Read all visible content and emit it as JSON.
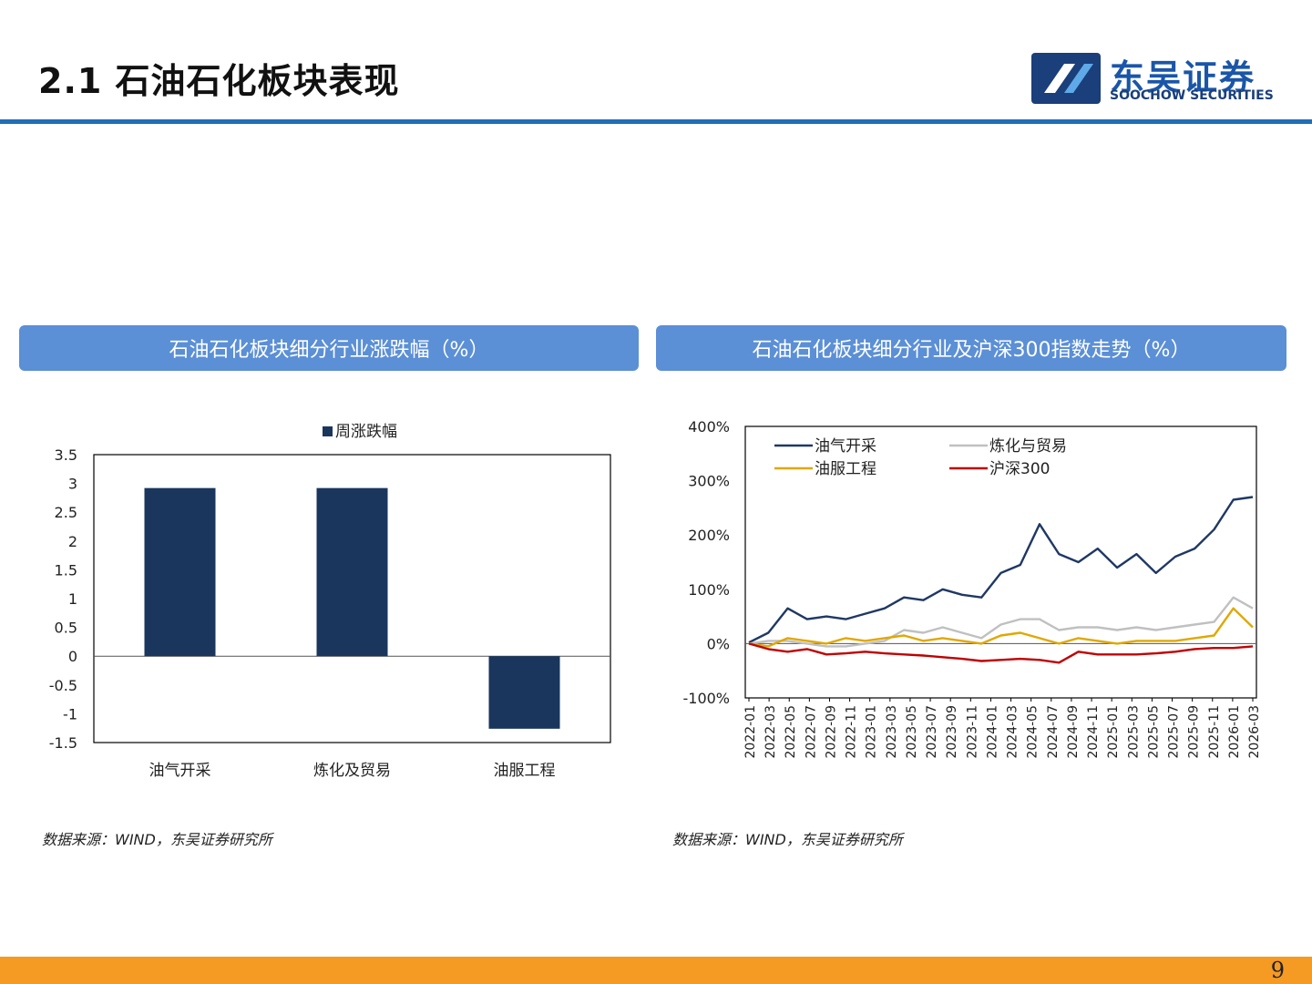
{
  "header": {
    "title": "2.1 石油石化板块表现",
    "logo_cn": "东吴证券",
    "logo_en": "SOOCHOW SECURITIES"
  },
  "panels": [
    {
      "title": "石油石化板块细分行业涨跌幅（%）",
      "source": "数据来源：WIND，东吴证券研究所"
    },
    {
      "title": "石油石化板块细分行业及沪深300指数走势（%）",
      "source": "数据来源：WIND，东吴证券研究所"
    }
  ],
  "page_number": "9",
  "colors": {
    "accent": "#1f6fb5",
    "panel": "#5b8fd6",
    "footer": "#f59a23",
    "bar": "#1a365d"
  },
  "chart_data": [
    {
      "type": "bar",
      "legend": "周涨跌幅",
      "categories": [
        "油气开采",
        "炼化及贸易",
        "油服工程"
      ],
      "values": [
        2.92,
        2.92,
        -1.26
      ],
      "ylim": [
        -1.5,
        3.5
      ],
      "yticks": [
        "3.5",
        "3",
        "2.5",
        "2",
        "1.5",
        "1",
        "0.5",
        "0",
        "-0.5",
        "-1",
        "-1.5"
      ],
      "legend_position": "top"
    },
    {
      "type": "line",
      "ylim": [
        -100,
        400
      ],
      "yticks": [
        "400%",
        "300%",
        "200%",
        "100%",
        "0%",
        "-100%"
      ],
      "xticks": [
        "2022-01",
        "2022-03",
        "2022-05",
        "2022-07",
        "2022-09",
        "2022-11",
        "2023-01",
        "2023-03",
        "2023-05",
        "2023-07",
        "2023-09",
        "2023-11",
        "2024-01",
        "2024-03",
        "2024-05",
        "2024-07",
        "2024-09",
        "2024-11",
        "2025-01",
        "2025-03",
        "2025-05",
        "2025-07",
        "2025-09",
        "2025-11",
        "2026-01",
        "2026-03"
      ],
      "legend_position": "top-left",
      "series": [
        {
          "name": "油气开采",
          "color": "#1f3864",
          "x": [
            0,
            1,
            2,
            3,
            4,
            5,
            6,
            7,
            8,
            9,
            10,
            11,
            12,
            13,
            14,
            15,
            16,
            17,
            18,
            19,
            20,
            21,
            22,
            23,
            24,
            25,
            26
          ],
          "y": [
            2,
            20,
            65,
            45,
            50,
            45,
            55,
            65,
            85,
            80,
            100,
            90,
            85,
            130,
            145,
            220,
            165,
            150,
            175,
            140,
            165,
            130,
            160,
            175,
            210,
            265,
            270
          ]
        },
        {
          "name": "炼化与贸易",
          "color": "#c0c0c0",
          "x": [
            0,
            1,
            2,
            3,
            4,
            5,
            6,
            7,
            8,
            9,
            10,
            11,
            12,
            13,
            14,
            15,
            16,
            17,
            18,
            19,
            20,
            21,
            22,
            23,
            24,
            25,
            26
          ],
          "y": [
            0,
            5,
            5,
            0,
            -5,
            -5,
            0,
            5,
            25,
            20,
            30,
            20,
            10,
            35,
            45,
            45,
            25,
            30,
            30,
            25,
            30,
            25,
            30,
            35,
            40,
            85,
            65
          ]
        },
        {
          "name": "油服工程",
          "color": "#e0a800",
          "x": [
            0,
            1,
            2,
            3,
            4,
            5,
            6,
            7,
            8,
            9,
            10,
            11,
            12,
            13,
            14,
            15,
            16,
            17,
            18,
            19,
            20,
            21,
            22,
            23,
            24,
            25,
            26
          ],
          "y": [
            0,
            -5,
            10,
            5,
            0,
            10,
            5,
            10,
            15,
            5,
            10,
            5,
            0,
            15,
            20,
            10,
            0,
            10,
            5,
            0,
            5,
            5,
            5,
            10,
            15,
            65,
            30
          ]
        },
        {
          "name": "沪深300",
          "color": "#c00000",
          "x": [
            0,
            1,
            2,
            3,
            4,
            5,
            6,
            7,
            8,
            9,
            10,
            11,
            12,
            13,
            14,
            15,
            16,
            17,
            18,
            19,
            20,
            21,
            22,
            23,
            24,
            25,
            26
          ],
          "y": [
            0,
            -10,
            -15,
            -10,
            -20,
            -18,
            -15,
            -18,
            -20,
            -22,
            -25,
            -28,
            -32,
            -30,
            -28,
            -30,
            -35,
            -15,
            -20,
            -20,
            -20,
            -18,
            -15,
            -10,
            -8,
            -8,
            -5
          ]
        }
      ]
    }
  ]
}
